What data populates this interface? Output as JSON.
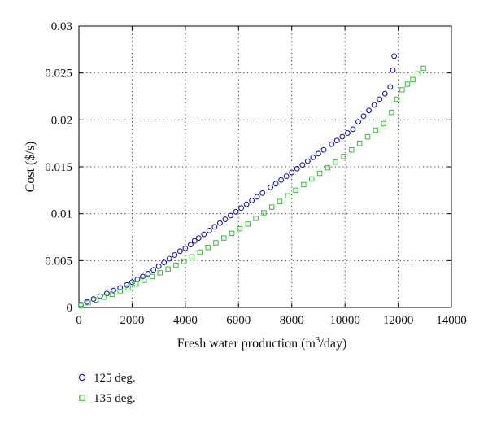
{
  "chart_data": {
    "type": "scatter",
    "title": "",
    "xlabel": "Fresh water production (m",
    "xlabel_sup": "3",
    "xlabel_suffix": "/day)",
    "ylabel": "Cost ($/s)",
    "xlim": [
      0,
      14000
    ],
    "ylim": [
      0,
      0.03
    ],
    "xticks": [
      0,
      2000,
      4000,
      6000,
      8000,
      10000,
      12000,
      14000
    ],
    "xtick_labels": [
      "0",
      "2000",
      "4000",
      "6000",
      "8000",
      "10000",
      "12000",
      "14000"
    ],
    "yticks": [
      0,
      0.005,
      0.01,
      0.015,
      0.02,
      0.025,
      0.03
    ],
    "ytick_labels": [
      "0",
      "0.005",
      "0.01",
      "0.015",
      "0.02",
      "0.025",
      "0.03"
    ],
    "grid": true,
    "legend_position": "below-left",
    "series": [
      {
        "name": "125 deg.",
        "marker": "circle",
        "color": "#1a1ab8",
        "x": [
          80,
          300,
          550,
          800,
          1050,
          1300,
          1550,
          1800,
          2000,
          2200,
          2400,
          2600,
          2800,
          3000,
          3200,
          3400,
          3600,
          3800,
          4000,
          4200,
          4350,
          4500,
          4700,
          4900,
          5100,
          5300,
          5500,
          5700,
          5900,
          6100,
          6300,
          6500,
          6700,
          6900,
          7200,
          7400,
          7600,
          7800,
          8000,
          8200,
          8400,
          8600,
          8800,
          9000,
          9200,
          9500,
          9700,
          9900,
          10100,
          10300,
          10500,
          10700,
          10900,
          11100,
          11300,
          11500,
          11700,
          11800,
          11850
        ],
        "y": [
          0.0003,
          0.0006,
          0.0009,
          0.0012,
          0.0015,
          0.0018,
          0.0021,
          0.0024,
          0.0027,
          0.003,
          0.0033,
          0.0036,
          0.004,
          0.0044,
          0.0048,
          0.0052,
          0.0056,
          0.006,
          0.0063,
          0.0067,
          0.0071,
          0.0074,
          0.0078,
          0.0082,
          0.0086,
          0.009,
          0.0094,
          0.0098,
          0.0102,
          0.0106,
          0.011,
          0.0114,
          0.0118,
          0.0122,
          0.0128,
          0.0132,
          0.0136,
          0.014,
          0.0144,
          0.0148,
          0.0152,
          0.0156,
          0.016,
          0.0164,
          0.0168,
          0.0174,
          0.0178,
          0.0182,
          0.0186,
          0.019,
          0.0198,
          0.0204,
          0.021,
          0.0216,
          0.0222,
          0.0228,
          0.0235,
          0.0253,
          0.0268
        ]
      },
      {
        "name": "135 deg.",
        "marker": "square",
        "color": "#3cc83c",
        "x": [
          80,
          350,
          650,
          950,
          1250,
          1550,
          1850,
          2150,
          2450,
          2750,
          3050,
          3350,
          3650,
          3950,
          4250,
          4550,
          4850,
          5150,
          5450,
          5750,
          6050,
          6350,
          6650,
          6950,
          7250,
          7550,
          7850,
          8150,
          8450,
          8750,
          9050,
          9350,
          9650,
          9950,
          10250,
          10550,
          10850,
          11150,
          11450,
          11750,
          11950,
          12150,
          12350,
          12550,
          12750,
          12950
        ],
        "y": [
          0.0002,
          0.0005,
          0.0008,
          0.0011,
          0.0014,
          0.0017,
          0.0021,
          0.0025,
          0.0029,
          0.0033,
          0.0037,
          0.0041,
          0.0045,
          0.0049,
          0.0054,
          0.0059,
          0.0064,
          0.0069,
          0.0074,
          0.0079,
          0.0084,
          0.0089,
          0.0095,
          0.0101,
          0.0107,
          0.0113,
          0.0119,
          0.0125,
          0.0131,
          0.0137,
          0.0143,
          0.0149,
          0.0155,
          0.0161,
          0.0168,
          0.0175,
          0.0182,
          0.0189,
          0.0196,
          0.0208,
          0.0222,
          0.0232,
          0.0238,
          0.0243,
          0.0249,
          0.0255
        ]
      }
    ]
  }
}
